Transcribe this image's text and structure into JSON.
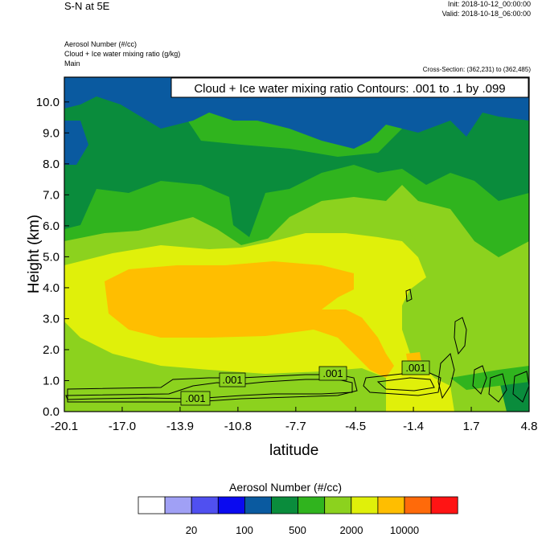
{
  "header": {
    "title": "S-N at 5E",
    "init": "Init: 2018-10-12_00:00:00",
    "valid": "Valid: 2018-10-18_06:00:00",
    "field_1": "Aerosol Number   (#/cc)",
    "field_2": "Cloud + Ice water mixing ratio   (g/kg)",
    "field_3": "Main",
    "cross_section": "Cross-Section: (362,231) to (362,485)"
  },
  "chart_data": {
    "type": "heatmap",
    "title": "S-N at 5E",
    "contour_label": "Cloud + Ice water mixing ratio Contours: .001 to .1 by .099",
    "contour_value_labels": [
      ".001",
      ".001",
      ".001",
      ".001"
    ],
    "xlabel": "latitude",
    "ylabel": "Height (km)",
    "xlim": [
      -20.1,
      4.8
    ],
    "ylim": [
      0.0,
      10.8
    ],
    "x_ticks": [
      -20.1,
      -17.0,
      -13.9,
      -10.8,
      -7.7,
      -4.5,
      -1.4,
      1.7,
      4.8
    ],
    "x_tick_labels": [
      "-20.1",
      "-17.0",
      "-13.9",
      "-10.8",
      "-7.7",
      "-4.5",
      "-1.4",
      "1.7",
      "4.8"
    ],
    "y_ticks": [
      0,
      1,
      2,
      3,
      4,
      5,
      6,
      7,
      8,
      9,
      10
    ],
    "y_tick_labels": [
      "0.0",
      "1.0",
      "2.0",
      "3.0",
      "4.0",
      "5.0",
      "6.0",
      "7.0",
      "8.0",
      "9.0",
      "10.0"
    ],
    "colorbar": {
      "title": "Aerosol Number  (#/cc)",
      "colors": [
        "#ffffff",
        "#a0a0f5",
        "#5050f0",
        "#0a0af0",
        "#0a5aa0",
        "#0a8c3c",
        "#30b41e",
        "#8cd21e",
        "#e0f00a",
        "#ffbe00",
        "#ff6a0a",
        "#ff1414"
      ],
      "labels": [
        "20",
        "100",
        "500",
        "2000",
        "10000"
      ]
    },
    "levels": [
      {
        "name": "dark-blue",
        "color": "#0a5aa0"
      },
      {
        "name": "dark-green",
        "color": "#0a8c3c"
      },
      {
        "name": "green",
        "color": "#30b41e"
      },
      {
        "name": "light-green",
        "color": "#8cd21e"
      },
      {
        "name": "yellow",
        "color": "#e0f00a"
      },
      {
        "name": "orange",
        "color": "#ffbe00"
      }
    ]
  }
}
